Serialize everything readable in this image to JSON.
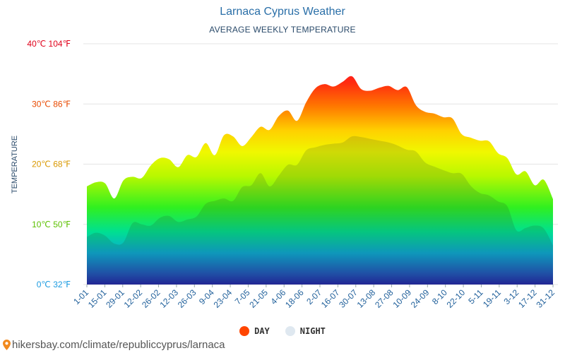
{
  "title": "Larnaca Cyprus Weather",
  "subtitle": "AVERAGE WEEKLY TEMPERATURE",
  "footer": {
    "text": "hikersbay.com/climate/republiccyprus/larnaca",
    "icon": "map-pin-icon"
  },
  "legend": [
    {
      "label": "DAY",
      "color": "#ff4500"
    },
    {
      "label": "NIGHT",
      "color": "#dfe8f0"
    }
  ],
  "colors": {
    "title": "#2a6fa8",
    "grid": "#e4e4e4",
    "tick_text": "#1f5f9a"
  },
  "chart_data": {
    "type": "area",
    "ylabel": "TEMPERATURE",
    "ylim": [
      0,
      40
    ],
    "y_ticks": [
      {
        "value": 0,
        "label": "0℃ 32℉",
        "color": "#1a9ae0"
      },
      {
        "value": 10,
        "label": "10℃ 50℉",
        "color": "#5cc000"
      },
      {
        "value": 20,
        "label": "20℃ 68℉",
        "color": "#d99800"
      },
      {
        "value": 30,
        "label": "30℃ 86℉",
        "color": "#e84a00"
      },
      {
        "value": 40,
        "label": "40℃ 104℉",
        "color": "#e0001a"
      }
    ],
    "x_labels": [
      "1-01",
      "15-01",
      "29-01",
      "12-02",
      "26-02",
      "12-03",
      "26-03",
      "9-04",
      "23-04",
      "7-05",
      "21-05",
      "4-06",
      "18-06",
      "2-07",
      "16-07",
      "30-07",
      "13-08",
      "27-08",
      "10-09",
      "24-09",
      "8-10",
      "22-10",
      "5-11",
      "19-11",
      "3-12",
      "17-12",
      "31-12"
    ],
    "grid": true,
    "series": [
      {
        "name": "DAY",
        "values": [
          16.3,
          17.0,
          16.8,
          14.3,
          17.3,
          17.9,
          17.7,
          19.8,
          21.0,
          20.8,
          19.5,
          21.5,
          21.2,
          23.5,
          21.5,
          24.8,
          24.6,
          23.0,
          24.5,
          26.2,
          25.7,
          28.0,
          28.9,
          27.2,
          30.3,
          32.6,
          33.3,
          32.9,
          33.7,
          34.6,
          32.5,
          32.2,
          32.7,
          33.0,
          32.3,
          32.8,
          29.8,
          28.7,
          28.4,
          27.8,
          27.6,
          25.0,
          24.4,
          23.9,
          23.8,
          21.8,
          21.0,
          18.3,
          18.8,
          16.5,
          17.4,
          14.2
        ]
      },
      {
        "name": "NIGHT",
        "values": [
          7.9,
          8.6,
          8.1,
          6.8,
          7.0,
          10.2,
          10.0,
          9.8,
          11.1,
          11.4,
          10.4,
          10.8,
          11.3,
          13.4,
          13.9,
          14.3,
          13.9,
          16.2,
          16.5,
          18.5,
          16.3,
          18.1,
          19.9,
          19.9,
          22.3,
          22.8,
          23.2,
          23.4,
          23.6,
          24.6,
          24.5,
          24.2,
          23.9,
          23.6,
          23.1,
          22.4,
          22.1,
          20.3,
          19.6,
          19.0,
          18.5,
          18.4,
          16.4,
          15.2,
          14.8,
          13.8,
          13.0,
          9.0,
          9.4,
          9.8,
          9.3,
          6.5
        ]
      }
    ]
  }
}
